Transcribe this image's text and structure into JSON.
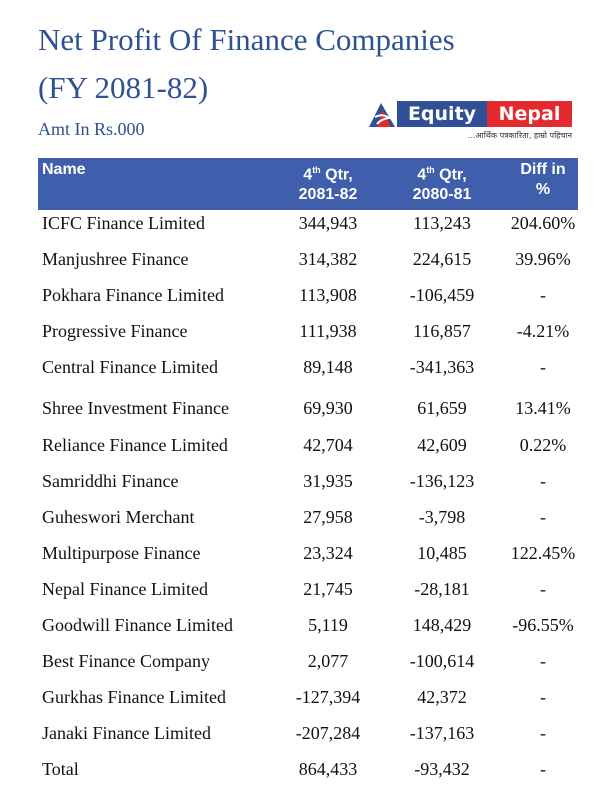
{
  "title_line1": "Net Profit Of Finance Companies",
  "title_line2": "(FY 2081-82)",
  "subtitle": "Amt In Rs.000",
  "logo": {
    "part1": "Equity",
    "part2": "Nepal",
    "tagline": "...आर्थिक पत्रकारिता, हाम्रो पहिचान",
    "colors": {
      "blue": "#2f4f96",
      "red": "#e22a2f"
    }
  },
  "colors": {
    "header_bg": "#3f5fad",
    "title": "#2f5192"
  },
  "table": {
    "headers": {
      "name": "Name",
      "col1_pre": "4",
      "col1_sup": "th",
      "col1_post": " Qtr,",
      "col1_line2": "2081-82",
      "col2_pre": "4",
      "col2_sup": "th",
      "col2_post": " Qtr,",
      "col2_line2": "2080-81",
      "col3_line1": "Diff in",
      "col3_line2": "%"
    },
    "rows": [
      [
        "ICFC Finance Limited",
        "344,943",
        "113,243",
        "204.60%"
      ],
      [
        "Manjushree Finance",
        "314,382",
        "224,615",
        "39.96%"
      ],
      [
        "Pokhara Finance Limited",
        "113,908",
        "-106,459",
        "-"
      ],
      [
        "Progressive Finance",
        "111,938",
        "116,857",
        "-4.21%"
      ],
      [
        "Central Finance Limited",
        "89,148",
        "-341,363",
        "-"
      ],
      [
        "Shree Investment Finance",
        "69,930",
        "61,659",
        "13.41%"
      ],
      [
        "Reliance Finance Limited",
        "42,704",
        "42,609",
        "0.22%"
      ],
      [
        "Samriddhi Finance",
        "31,935",
        "-136,123",
        "-"
      ],
      [
        "Guheswori Merchant",
        "27,958",
        "-3,798",
        "-"
      ],
      [
        "Multipurpose Finance",
        "23,324",
        "10,485",
        "122.45%"
      ],
      [
        "Nepal Finance Limited",
        "21,745",
        "-28,181",
        "-"
      ],
      [
        "Goodwill Finance Limited",
        "5,119",
        "148,429",
        "-96.55%"
      ],
      [
        "Best Finance Company",
        "2,077",
        "-100,614",
        "-"
      ],
      [
        "Gurkhas Finance Limited",
        "-127,394",
        "42,372",
        "-"
      ],
      [
        "Janaki Finance Limited",
        "-207,284",
        "-137,163",
        "-"
      ],
      [
        "Total",
        "864,433",
        "-93,432",
        "-"
      ]
    ]
  }
}
